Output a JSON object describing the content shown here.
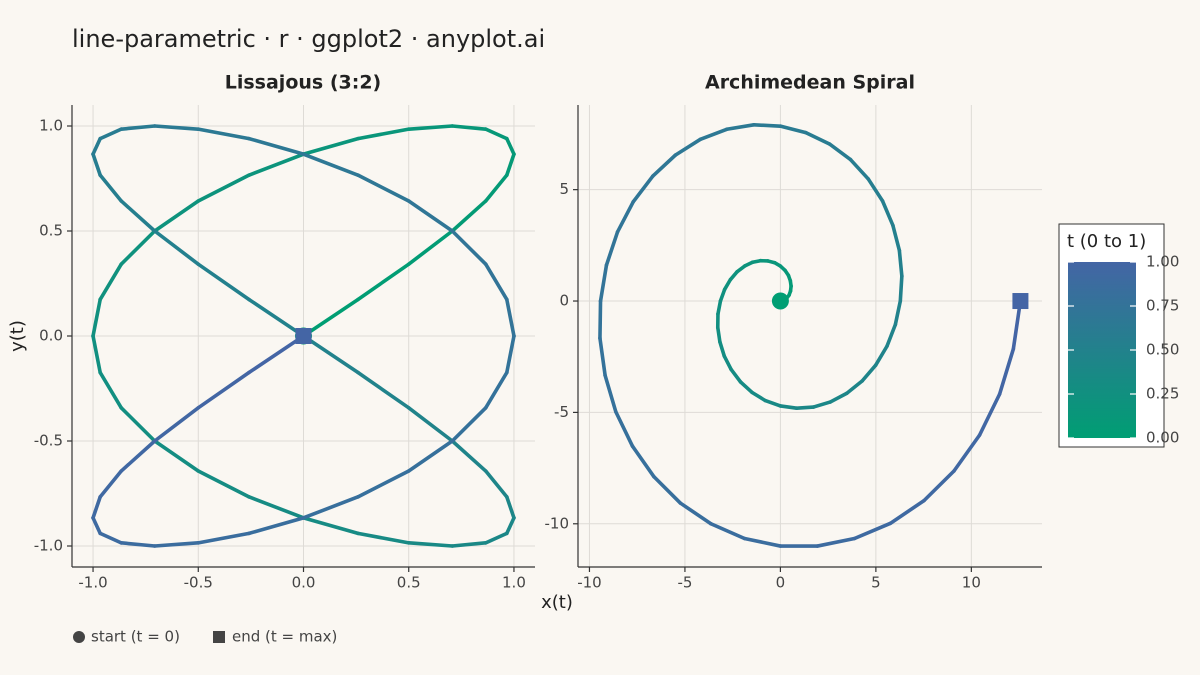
{
  "title": "line-parametric · r · ggplot2 · anyplot.ai",
  "xlabel": "x(t)",
  "ylabel": "y(t)",
  "colorbar": {
    "title": "t (0 to 1)",
    "colors": [
      "#009e73",
      "#4465a5"
    ],
    "lim": [
      0,
      1
    ],
    "ticks": [
      {
        "value": 0,
        "label": "0.00"
      },
      {
        "value": 0.25,
        "label": "0.25"
      },
      {
        "value": 0.5,
        "label": "0.50"
      },
      {
        "value": 0.75,
        "label": "0.75"
      },
      {
        "value": 1,
        "label": "1.00"
      }
    ]
  },
  "legend": {
    "start": "start (t = 0)",
    "end": "end (t = max)"
  },
  "chart_data": [
    {
      "type": "line",
      "title": "Lissajous (3:2)",
      "grid": true,
      "xlim": [
        -1.1,
        1.1
      ],
      "ylim": [
        -1.1,
        1.1
      ],
      "xticks": [
        {
          "value": -1,
          "label": "-1.0"
        },
        {
          "value": -0.5,
          "label": "-0.5"
        },
        {
          "value": 0,
          "label": "0.0"
        },
        {
          "value": 0.5,
          "label": "0.5"
        },
        {
          "value": 1,
          "label": "1.0"
        }
      ],
      "yticks": [
        {
          "value": -1,
          "label": "-1.0"
        },
        {
          "value": -0.5,
          "label": "-0.5"
        },
        {
          "value": 0,
          "label": "0.0"
        },
        {
          "value": 0.5,
          "label": "0.5"
        },
        {
          "value": 1,
          "label": "1.0"
        }
      ],
      "x": [
        0,
        0.259,
        0.5,
        0.707,
        0.866,
        0.966,
        1,
        0.966,
        0.866,
        0.707,
        0.5,
        0.259,
        0,
        -0.259,
        -0.5,
        -0.707,
        -0.866,
        -0.966,
        -1,
        -0.966,
        -0.866,
        -0.707,
        -0.5,
        -0.259,
        0,
        0.259,
        0.5,
        0.707,
        0.866,
        0.966,
        1,
        0.966,
        0.866,
        0.707,
        0.5,
        0.259,
        0,
        -0.259,
        -0.5,
        -0.707,
        -0.866,
        -0.966,
        -1,
        -0.966,
        -0.866,
        -0.707,
        -0.5,
        -0.259,
        0,
        0.259,
        0.5,
        0.707,
        0.866,
        0.966,
        1,
        0.966,
        0.866,
        0.707,
        0.5,
        0.259,
        0,
        -0.259,
        -0.5,
        -0.707,
        -0.866,
        -0.966,
        -1,
        -0.966,
        -0.866,
        -0.707,
        -0.5,
        -0.259,
        0
      ],
      "y": [
        0,
        0.174,
        0.342,
        0.5,
        0.643,
        0.766,
        0.866,
        0.94,
        0.985,
        1,
        0.985,
        0.94,
        0.866,
        0.766,
        0.643,
        0.5,
        0.342,
        0.174,
        0,
        -0.174,
        -0.342,
        -0.5,
        -0.643,
        -0.766,
        -0.866,
        -0.94,
        -0.985,
        -1,
        -0.985,
        -0.94,
        -0.866,
        -0.766,
        -0.643,
        -0.5,
        -0.342,
        -0.174,
        0,
        0.174,
        0.342,
        0.5,
        0.643,
        0.766,
        0.866,
        0.94,
        0.985,
        1,
        0.985,
        0.94,
        0.866,
        0.766,
        0.643,
        0.5,
        0.342,
        0.174,
        0,
        -0.174,
        -0.342,
        -0.5,
        -0.643,
        -0.766,
        -0.866,
        -0.94,
        -0.985,
        -1,
        -0.985,
        -0.94,
        -0.866,
        -0.766,
        -0.643,
        -0.5,
        -0.342,
        -0.174,
        0
      ],
      "t": [
        0,
        0.014,
        0.028,
        0.042,
        0.056,
        0.069,
        0.083,
        0.097,
        0.111,
        0.125,
        0.139,
        0.153,
        0.167,
        0.181,
        0.194,
        0.208,
        0.222,
        0.236,
        0.25,
        0.264,
        0.278,
        0.292,
        0.306,
        0.319,
        0.333,
        0.347,
        0.361,
        0.375,
        0.389,
        0.403,
        0.417,
        0.431,
        0.444,
        0.458,
        0.472,
        0.486,
        0.5,
        0.514,
        0.528,
        0.542,
        0.556,
        0.569,
        0.583,
        0.597,
        0.611,
        0.625,
        0.639,
        0.653,
        0.667,
        0.681,
        0.694,
        0.708,
        0.722,
        0.736,
        0.75,
        0.764,
        0.778,
        0.792,
        0.806,
        0.819,
        0.833,
        0.847,
        0.861,
        0.875,
        0.889,
        0.903,
        0.917,
        0.931,
        0.944,
        0.958,
        0.972,
        0.986,
        1
      ]
    },
    {
      "type": "line",
      "title": "Archimedean Spiral",
      "grid": true,
      "xlim": [
        -10.6,
        13.7
      ],
      "ylim": [
        -11.94,
        8.8
      ],
      "xticks": [
        -10,
        -5,
        0,
        5,
        10
      ],
      "yticks": [
        -10,
        -5,
        0,
        5
      ],
      "x": [
        0,
        0.17,
        0.33,
        0.45,
        0.53,
        0.56,
        0.52,
        0.42,
        0.24,
        0,
        -0.3,
        -0.66,
        -1.05,
        -1.46,
        -1.87,
        -2.27,
        -2.62,
        -2.92,
        -3.14,
        -3.27,
        -3.28,
        -3.17,
        -2.94,
        -2.58,
        -2.09,
        -1.49,
        -0.79,
        0,
        0.85,
        1.73,
        2.62,
        3.48,
        4.28,
        4.99,
        5.58,
        6.02,
        6.28,
        6.36,
        6.23,
        5.89,
        5.35,
        4.6,
        3.67,
        2.57,
        1.33,
        0,
        -1.39,
        -2.81,
        -4.19,
        -5.5,
        -6.68,
        -7.71,
        -8.53,
        -9.11,
        -9.42,
        -9.45,
        -9.18,
        -8.62,
        -7.75,
        -6.62,
        -5.24,
        -3.64,
        -1.88,
        0,
        1.94,
        3.88,
        5.76,
        7.52,
        9.09,
        10.43,
        11.48,
        12.2,
        12.57
      ],
      "y": [
        0,
        0.03,
        0.12,
        0.26,
        0.45,
        0.67,
        0.91,
        1.15,
        1.38,
        1.57,
        1.72,
        1.8,
        1.81,
        1.74,
        1.57,
        1.31,
        0.96,
        0.52,
        0,
        -0.58,
        -1.19,
        -1.83,
        -2.47,
        -3.07,
        -3.63,
        -4.1,
        -4.47,
        -4.71,
        -4.81,
        -4.76,
        -4.53,
        -4.14,
        -3.59,
        -2.88,
        -2.03,
        -1.06,
        0,
        1.12,
        2.27,
        3.4,
        4.49,
        5.48,
        6.35,
        7.05,
        7.56,
        7.85,
        7.91,
        7.71,
        7.26,
        6.55,
        5.61,
        4.45,
        3.1,
        1.61,
        0,
        -1.67,
        -3.34,
        -4.97,
        -6.51,
        -7.89,
        -9.07,
        -10,
        -10.66,
        -11,
        -11,
        -10.66,
        -9.98,
        -8.96,
        -7.63,
        -6.02,
        -4.18,
        -2.15,
        0
      ],
      "t": [
        0,
        0.014,
        0.028,
        0.042,
        0.056,
        0.069,
        0.083,
        0.097,
        0.111,
        0.125,
        0.139,
        0.153,
        0.167,
        0.181,
        0.194,
        0.208,
        0.222,
        0.236,
        0.25,
        0.264,
        0.278,
        0.292,
        0.306,
        0.319,
        0.333,
        0.347,
        0.361,
        0.375,
        0.389,
        0.403,
        0.417,
        0.431,
        0.444,
        0.458,
        0.472,
        0.486,
        0.5,
        0.514,
        0.528,
        0.542,
        0.556,
        0.569,
        0.583,
        0.597,
        0.611,
        0.625,
        0.639,
        0.653,
        0.667,
        0.681,
        0.694,
        0.708,
        0.722,
        0.736,
        0.75,
        0.764,
        0.778,
        0.792,
        0.806,
        0.819,
        0.833,
        0.847,
        0.861,
        0.875,
        0.889,
        0.903,
        0.917,
        0.931,
        0.944,
        0.958,
        0.972,
        0.986,
        1
      ]
    }
  ]
}
